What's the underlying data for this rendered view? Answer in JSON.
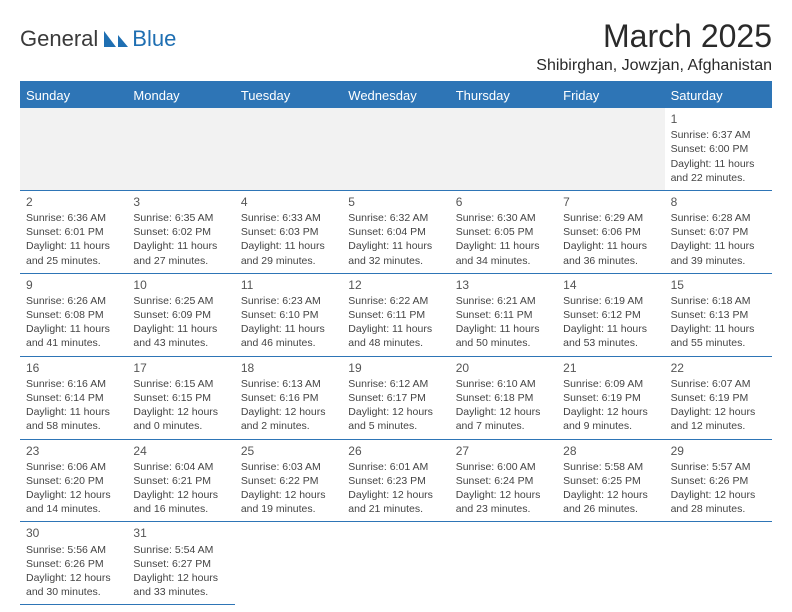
{
  "logo": {
    "text1": "General",
    "text2": "Blue"
  },
  "title": "March 2025",
  "location": "Shibirghan, Jowzjan, Afghanistan",
  "day_names": [
    "Sunday",
    "Monday",
    "Tuesday",
    "Wednesday",
    "Thursday",
    "Friday",
    "Saturday"
  ],
  "colors": {
    "header_bg": "#2e75b6",
    "header_text": "#ffffff",
    "cell_border": "#2e75b6",
    "empty_bg": "#f2f2f2",
    "text": "#444444"
  },
  "weeks": [
    [
      {
        "empty": true
      },
      {
        "empty": true
      },
      {
        "empty": true
      },
      {
        "empty": true
      },
      {
        "empty": true
      },
      {
        "empty": true
      },
      {
        "day": "1",
        "sunrise": "Sunrise: 6:37 AM",
        "sunset": "Sunset: 6:00 PM",
        "daylight": "Daylight: 11 hours and 22 minutes."
      }
    ],
    [
      {
        "day": "2",
        "sunrise": "Sunrise: 6:36 AM",
        "sunset": "Sunset: 6:01 PM",
        "daylight": "Daylight: 11 hours and 25 minutes."
      },
      {
        "day": "3",
        "sunrise": "Sunrise: 6:35 AM",
        "sunset": "Sunset: 6:02 PM",
        "daylight": "Daylight: 11 hours and 27 minutes."
      },
      {
        "day": "4",
        "sunrise": "Sunrise: 6:33 AM",
        "sunset": "Sunset: 6:03 PM",
        "daylight": "Daylight: 11 hours and 29 minutes."
      },
      {
        "day": "5",
        "sunrise": "Sunrise: 6:32 AM",
        "sunset": "Sunset: 6:04 PM",
        "daylight": "Daylight: 11 hours and 32 minutes."
      },
      {
        "day": "6",
        "sunrise": "Sunrise: 6:30 AM",
        "sunset": "Sunset: 6:05 PM",
        "daylight": "Daylight: 11 hours and 34 minutes."
      },
      {
        "day": "7",
        "sunrise": "Sunrise: 6:29 AM",
        "sunset": "Sunset: 6:06 PM",
        "daylight": "Daylight: 11 hours and 36 minutes."
      },
      {
        "day": "8",
        "sunrise": "Sunrise: 6:28 AM",
        "sunset": "Sunset: 6:07 PM",
        "daylight": "Daylight: 11 hours and 39 minutes."
      }
    ],
    [
      {
        "day": "9",
        "sunrise": "Sunrise: 6:26 AM",
        "sunset": "Sunset: 6:08 PM",
        "daylight": "Daylight: 11 hours and 41 minutes."
      },
      {
        "day": "10",
        "sunrise": "Sunrise: 6:25 AM",
        "sunset": "Sunset: 6:09 PM",
        "daylight": "Daylight: 11 hours and 43 minutes."
      },
      {
        "day": "11",
        "sunrise": "Sunrise: 6:23 AM",
        "sunset": "Sunset: 6:10 PM",
        "daylight": "Daylight: 11 hours and 46 minutes."
      },
      {
        "day": "12",
        "sunrise": "Sunrise: 6:22 AM",
        "sunset": "Sunset: 6:11 PM",
        "daylight": "Daylight: 11 hours and 48 minutes."
      },
      {
        "day": "13",
        "sunrise": "Sunrise: 6:21 AM",
        "sunset": "Sunset: 6:11 PM",
        "daylight": "Daylight: 11 hours and 50 minutes."
      },
      {
        "day": "14",
        "sunrise": "Sunrise: 6:19 AM",
        "sunset": "Sunset: 6:12 PM",
        "daylight": "Daylight: 11 hours and 53 minutes."
      },
      {
        "day": "15",
        "sunrise": "Sunrise: 6:18 AM",
        "sunset": "Sunset: 6:13 PM",
        "daylight": "Daylight: 11 hours and 55 minutes."
      }
    ],
    [
      {
        "day": "16",
        "sunrise": "Sunrise: 6:16 AM",
        "sunset": "Sunset: 6:14 PM",
        "daylight": "Daylight: 11 hours and 58 minutes."
      },
      {
        "day": "17",
        "sunrise": "Sunrise: 6:15 AM",
        "sunset": "Sunset: 6:15 PM",
        "daylight": "Daylight: 12 hours and 0 minutes."
      },
      {
        "day": "18",
        "sunrise": "Sunrise: 6:13 AM",
        "sunset": "Sunset: 6:16 PM",
        "daylight": "Daylight: 12 hours and 2 minutes."
      },
      {
        "day": "19",
        "sunrise": "Sunrise: 6:12 AM",
        "sunset": "Sunset: 6:17 PM",
        "daylight": "Daylight: 12 hours and 5 minutes."
      },
      {
        "day": "20",
        "sunrise": "Sunrise: 6:10 AM",
        "sunset": "Sunset: 6:18 PM",
        "daylight": "Daylight: 12 hours and 7 minutes."
      },
      {
        "day": "21",
        "sunrise": "Sunrise: 6:09 AM",
        "sunset": "Sunset: 6:19 PM",
        "daylight": "Daylight: 12 hours and 9 minutes."
      },
      {
        "day": "22",
        "sunrise": "Sunrise: 6:07 AM",
        "sunset": "Sunset: 6:19 PM",
        "daylight": "Daylight: 12 hours and 12 minutes."
      }
    ],
    [
      {
        "day": "23",
        "sunrise": "Sunrise: 6:06 AM",
        "sunset": "Sunset: 6:20 PM",
        "daylight": "Daylight: 12 hours and 14 minutes."
      },
      {
        "day": "24",
        "sunrise": "Sunrise: 6:04 AM",
        "sunset": "Sunset: 6:21 PM",
        "daylight": "Daylight: 12 hours and 16 minutes."
      },
      {
        "day": "25",
        "sunrise": "Sunrise: 6:03 AM",
        "sunset": "Sunset: 6:22 PM",
        "daylight": "Daylight: 12 hours and 19 minutes."
      },
      {
        "day": "26",
        "sunrise": "Sunrise: 6:01 AM",
        "sunset": "Sunset: 6:23 PM",
        "daylight": "Daylight: 12 hours and 21 minutes."
      },
      {
        "day": "27",
        "sunrise": "Sunrise: 6:00 AM",
        "sunset": "Sunset: 6:24 PM",
        "daylight": "Daylight: 12 hours and 23 minutes."
      },
      {
        "day": "28",
        "sunrise": "Sunrise: 5:58 AM",
        "sunset": "Sunset: 6:25 PM",
        "daylight": "Daylight: 12 hours and 26 minutes."
      },
      {
        "day": "29",
        "sunrise": "Sunrise: 5:57 AM",
        "sunset": "Sunset: 6:26 PM",
        "daylight": "Daylight: 12 hours and 28 minutes."
      }
    ],
    [
      {
        "day": "30",
        "sunrise": "Sunrise: 5:56 AM",
        "sunset": "Sunset: 6:26 PM",
        "daylight": "Daylight: 12 hours and 30 minutes."
      },
      {
        "day": "31",
        "sunrise": "Sunrise: 5:54 AM",
        "sunset": "Sunset: 6:27 PM",
        "daylight": "Daylight: 12 hours and 33 minutes."
      },
      {
        "blank_end": true
      },
      {
        "blank_end": true
      },
      {
        "blank_end": true
      },
      {
        "blank_end": true
      },
      {
        "blank_end": true
      }
    ]
  ]
}
